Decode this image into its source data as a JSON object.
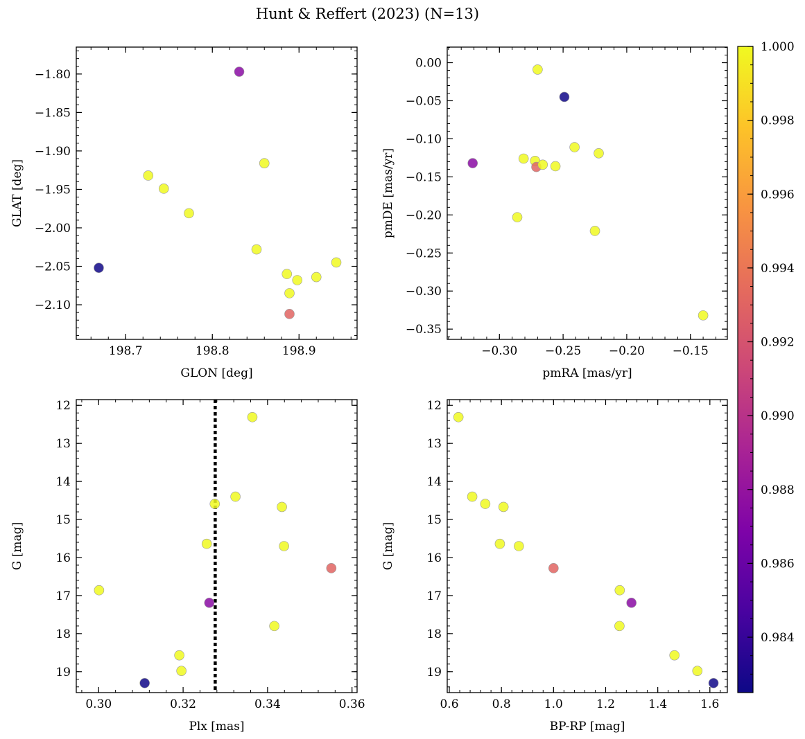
{
  "figure": {
    "title": "Hunt & Reffert (2023) (N=13)"
  },
  "colorbar": {
    "colormap": "plasma",
    "range": [
      0.9825,
      1.0
    ],
    "ticks": [
      "0.984",
      "0.986",
      "0.988",
      "0.990",
      "0.992",
      "0.994",
      "0.996",
      "0.998",
      "1.000"
    ]
  },
  "chart_data": [
    {
      "type": "scatter",
      "panel": "top-left",
      "xlabel": "GLON [deg]",
      "ylabel": "GLAT [deg]",
      "xlim": [
        198.643,
        198.967
      ],
      "ylim": [
        -2.145,
        -1.765
      ],
      "yinvert": false,
      "xticks": [
        198.7,
        198.8,
        198.9
      ],
      "xticklabels": [
        "198.7",
        "198.8",
        "198.9"
      ],
      "yticks": [
        -2.1,
        -2.05,
        -2.0,
        -1.95,
        -1.9,
        -1.85,
        -1.8
      ],
      "yticklabels": [
        "−2.10",
        "−2.05",
        "−2.00",
        "−1.95",
        "−1.90",
        "−1.85",
        "−1.80"
      ],
      "points": [
        {
          "x": 198.831,
          "y": -1.797,
          "c": 0.9875
        },
        {
          "x": 198.86,
          "y": -1.916,
          "c": 1.0
        },
        {
          "x": 198.726,
          "y": -1.932,
          "c": 1.0
        },
        {
          "x": 198.744,
          "y": -1.949,
          "c": 1.0
        },
        {
          "x": 198.773,
          "y": -1.981,
          "c": 1.0
        },
        {
          "x": 198.851,
          "y": -2.028,
          "c": 1.0
        },
        {
          "x": 198.669,
          "y": -2.052,
          "c": 0.9826
        },
        {
          "x": 198.943,
          "y": -2.045,
          "c": 1.0
        },
        {
          "x": 198.886,
          "y": -2.06,
          "c": 1.0
        },
        {
          "x": 198.92,
          "y": -2.064,
          "c": 1.0
        },
        {
          "x": 198.898,
          "y": -2.068,
          "c": 1.0
        },
        {
          "x": 198.889,
          "y": -2.085,
          "c": 1.0
        },
        {
          "x": 198.889,
          "y": -2.112,
          "c": 0.993
        }
      ]
    },
    {
      "type": "scatter",
      "panel": "top-right",
      "xlabel": "pmRA [mas/yr]",
      "ylabel": "pmDE [mas/yr]",
      "xlim": [
        -0.341,
        -0.121
      ],
      "ylim": [
        -0.3635,
        0.0205
      ],
      "yinvert": false,
      "xticks": [
        -0.3,
        -0.25,
        -0.2,
        -0.15
      ],
      "xticklabels": [
        "−0.30",
        "−0.25",
        "−0.20",
        "−0.15"
      ],
      "yticks": [
        -0.35,
        -0.3,
        -0.25,
        -0.2,
        -0.15,
        -0.1,
        -0.05,
        0.0
      ],
      "yticklabels": [
        "−0.35",
        "−0.30",
        "−0.25",
        "−0.20",
        "−0.15",
        "−0.10",
        "−0.05",
        "0.00"
      ],
      "points": [
        {
          "x": -0.27,
          "y": -0.009,
          "c": 1.0
        },
        {
          "x": -0.249,
          "y": -0.045,
          "c": 0.9826
        },
        {
          "x": -0.241,
          "y": -0.111,
          "c": 1.0
        },
        {
          "x": -0.222,
          "y": -0.119,
          "c": 1.0
        },
        {
          "x": -0.321,
          "y": -0.132,
          "c": 0.9875
        },
        {
          "x": -0.281,
          "y": -0.126,
          "c": 1.0
        },
        {
          "x": -0.272,
          "y": -0.129,
          "c": 1.0
        },
        {
          "x": -0.271,
          "y": -0.137,
          "c": 0.993
        },
        {
          "x": -0.266,
          "y": -0.134,
          "c": 1.0
        },
        {
          "x": -0.256,
          "y": -0.136,
          "c": 1.0
        },
        {
          "x": -0.286,
          "y": -0.203,
          "c": 1.0
        },
        {
          "x": -0.225,
          "y": -0.221,
          "c": 1.0
        },
        {
          "x": -0.14,
          "y": -0.332,
          "c": 1.0
        }
      ]
    },
    {
      "type": "scatter",
      "panel": "bottom-left",
      "xlabel": "Plx [mas]",
      "ylabel": "G [mag]",
      "xlim": [
        0.2947,
        0.3612
      ],
      "ylim": [
        19.55,
        11.85
      ],
      "yinvert": true,
      "xticks": [
        0.3,
        0.32,
        0.34,
        0.36
      ],
      "xticklabels": [
        "0.30",
        "0.32",
        "0.34",
        "0.36"
      ],
      "yticks": [
        12,
        13,
        14,
        15,
        16,
        17,
        18,
        19
      ],
      "yticklabels": [
        "12",
        "13",
        "14",
        "15",
        "16",
        "17",
        "18",
        "19"
      ],
      "vline": {
        "x": 0.3276,
        "style": "dotted"
      },
      "points": [
        {
          "x": 0.3364,
          "y": 12.31,
          "c": 1.0
        },
        {
          "x": 0.3324,
          "y": 14.4,
          "c": 1.0
        },
        {
          "x": 0.3275,
          "y": 14.59,
          "c": 1.0
        },
        {
          "x": 0.3434,
          "y": 14.67,
          "c": 1.0
        },
        {
          "x": 0.3256,
          "y": 15.64,
          "c": 1.0
        },
        {
          "x": 0.3439,
          "y": 15.7,
          "c": 1.0
        },
        {
          "x": 0.3551,
          "y": 16.28,
          "c": 0.993
        },
        {
          "x": 0.3001,
          "y": 16.86,
          "c": 1.0
        },
        {
          "x": 0.3262,
          "y": 17.19,
          "c": 0.9875
        },
        {
          "x": 0.3416,
          "y": 17.8,
          "c": 1.0
        },
        {
          "x": 0.3191,
          "y": 18.57,
          "c": 1.0
        },
        {
          "x": 0.3196,
          "y": 18.98,
          "c": 1.0
        },
        {
          "x": 0.3109,
          "y": 19.3,
          "c": 0.9826
        }
      ]
    },
    {
      "type": "scatter",
      "panel": "bottom-right",
      "xlabel": "BP-RP [mag]",
      "ylabel": "G [mag]",
      "xlim": [
        0.592,
        1.667
      ],
      "ylim": [
        19.55,
        11.85
      ],
      "yinvert": true,
      "xticks": [
        0.6,
        0.8,
        1.0,
        1.2,
        1.4,
        1.6
      ],
      "xticklabels": [
        "0.6",
        "0.8",
        "1.0",
        "1.2",
        "1.4",
        "1.6"
      ],
      "yticks": [
        12,
        13,
        14,
        15,
        16,
        17,
        18,
        19
      ],
      "yticklabels": [
        "12",
        "13",
        "14",
        "15",
        "16",
        "17",
        "18",
        "19"
      ],
      "points": [
        {
          "x": 0.635,
          "y": 12.31,
          "c": 1.0
        },
        {
          "x": 0.688,
          "y": 14.4,
          "c": 1.0
        },
        {
          "x": 0.738,
          "y": 14.59,
          "c": 1.0
        },
        {
          "x": 0.808,
          "y": 14.67,
          "c": 1.0
        },
        {
          "x": 0.794,
          "y": 15.64,
          "c": 1.0
        },
        {
          "x": 0.867,
          "y": 15.7,
          "c": 1.0
        },
        {
          "x": 1.0,
          "y": 16.28,
          "c": 0.993
        },
        {
          "x": 1.254,
          "y": 16.86,
          "c": 1.0
        },
        {
          "x": 1.299,
          "y": 17.19,
          "c": 0.9875
        },
        {
          "x": 1.253,
          "y": 17.8,
          "c": 1.0
        },
        {
          "x": 1.464,
          "y": 18.57,
          "c": 1.0
        },
        {
          "x": 1.552,
          "y": 18.98,
          "c": 1.0
        },
        {
          "x": 1.614,
          "y": 19.3,
          "c": 0.9826
        }
      ]
    }
  ]
}
